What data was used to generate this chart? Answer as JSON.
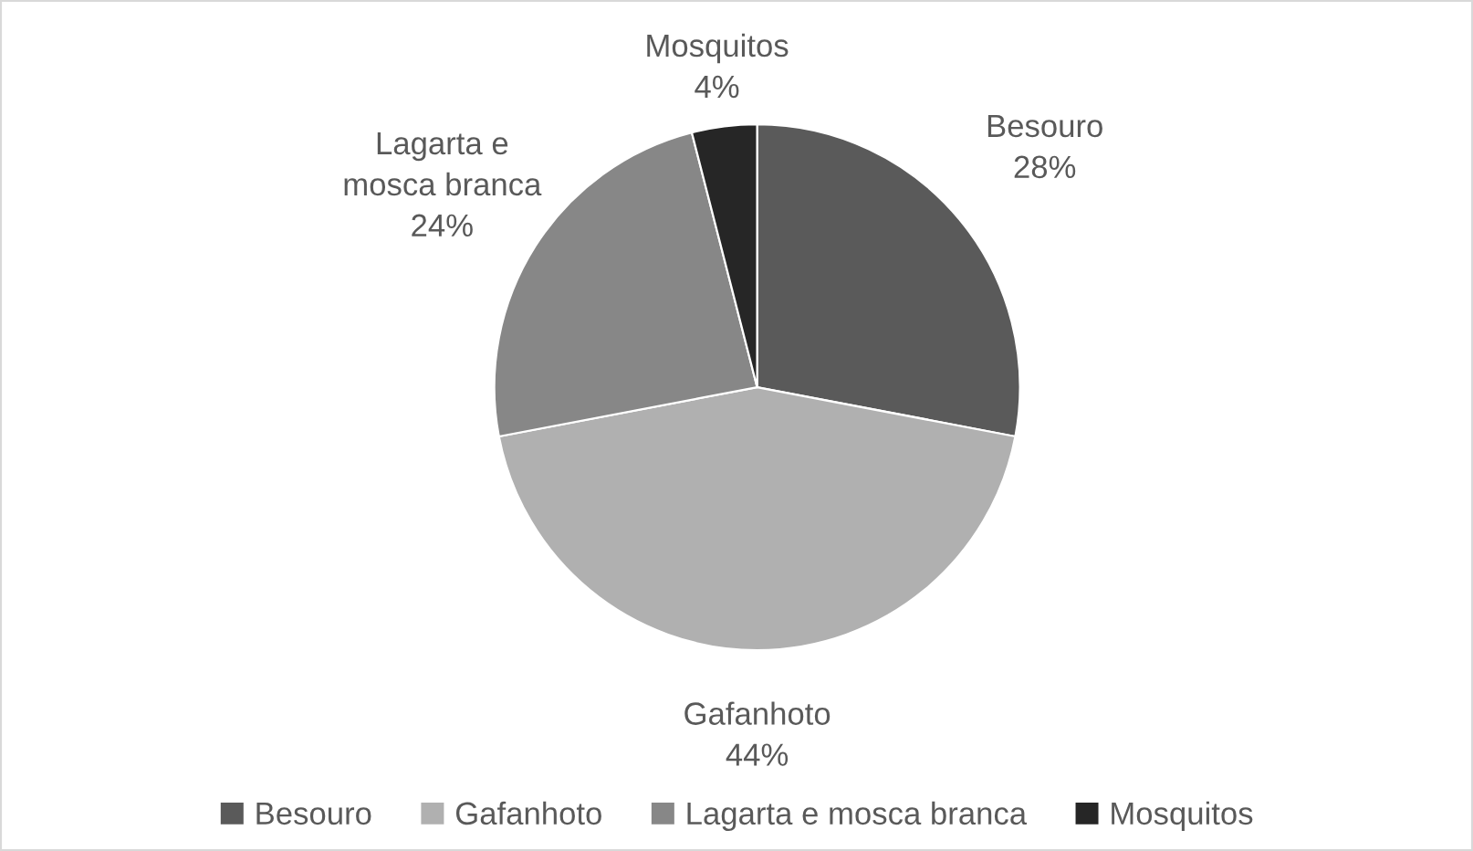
{
  "chart_data": {
    "type": "pie",
    "categories": [
      "Besouro",
      "Gafanhoto",
      "Lagarta e mosca branca",
      "Mosquitos"
    ],
    "values": [
      28,
      44,
      24,
      4
    ],
    "value_labels": [
      "28%",
      "44%",
      "24%",
      "4%"
    ],
    "colors": [
      "#5a5a5a",
      "#b0b0b0",
      "#878787",
      "#262626"
    ],
    "legend": "bottom"
  }
}
